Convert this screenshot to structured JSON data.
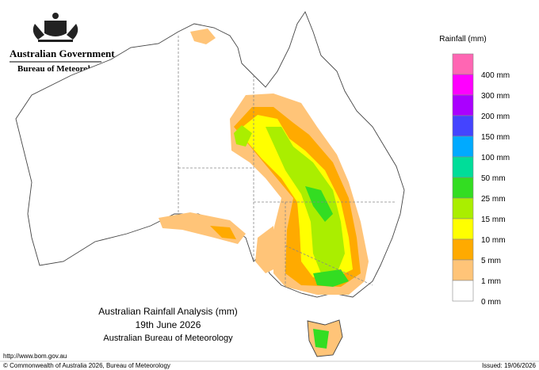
{
  "header": {
    "government": "Australian Government",
    "agency": "Bureau of Meteorology"
  },
  "map": {
    "title": "Australian Rainfall Analysis (mm)",
    "date": "19th June 2026",
    "source": "Australian Bureau of Meteorology"
  },
  "legend": {
    "title": "Rainfall (mm)",
    "items": [
      {
        "label": "400 mm",
        "color": "#ff66b3"
      },
      {
        "label": "300 mm",
        "color": "#ff00ff"
      },
      {
        "label": "200 mm",
        "color": "#aa00ff"
      },
      {
        "label": "150 mm",
        "color": "#4444ff"
      },
      {
        "label": "100 mm",
        "color": "#00aaff"
      },
      {
        "label": "50 mm",
        "color": "#00dd99"
      },
      {
        "label": "25 mm",
        "color": "#33dd22"
      },
      {
        "label": "15 mm",
        "color": "#aaee00"
      },
      {
        "label": "10 mm",
        "color": "#ffff00"
      },
      {
        "label": "5 mm",
        "color": "#ffaa00"
      },
      {
        "label": "1 mm",
        "color": "#ffc478"
      },
      {
        "label": "0 mm",
        "color": "#ffffff"
      }
    ]
  },
  "footer": {
    "url": "http://www.bom.gov.au",
    "copyright": "© Commonwealth of Australia 2026, Bureau of Meteorology",
    "issued": "Issued: 19/06/2026"
  }
}
